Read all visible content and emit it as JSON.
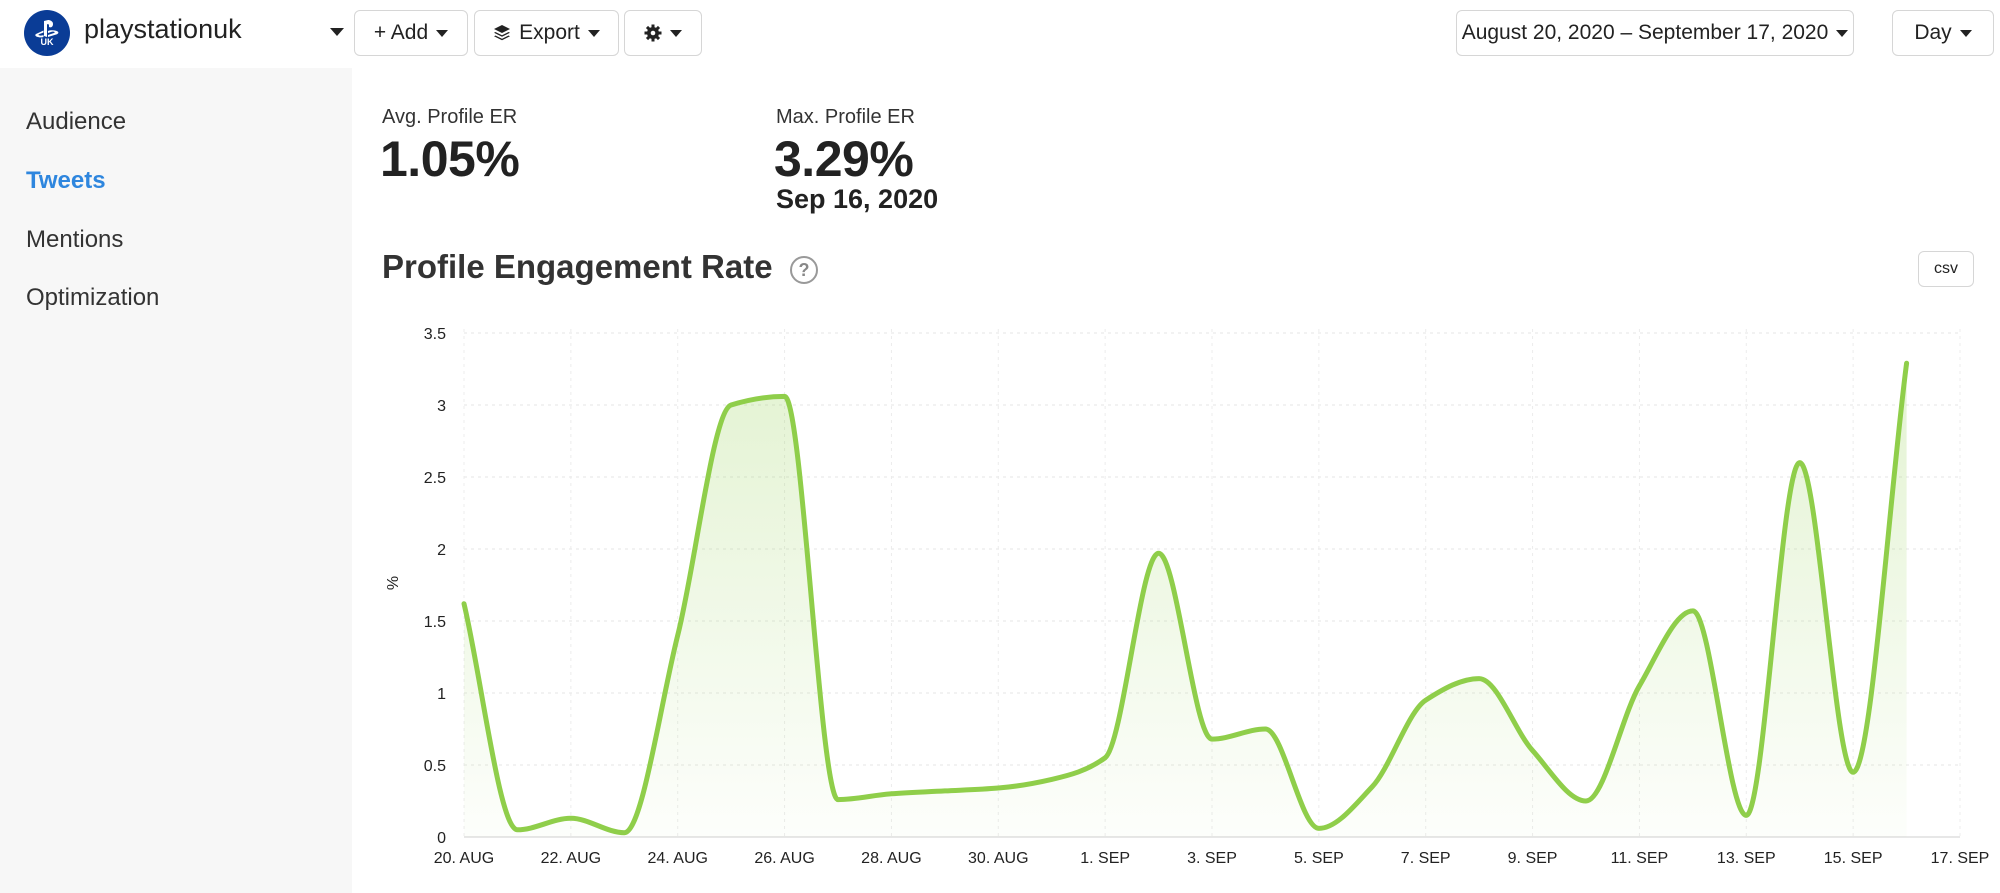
{
  "header": {
    "account_name": "playstationuk",
    "logo_badge": "UK",
    "add_label": "+ Add",
    "export_label": "Export",
    "date_range": "August 20, 2020 – September 17, 2020",
    "period": "Day"
  },
  "sidebar": {
    "items": [
      {
        "label": "Audience",
        "active": false
      },
      {
        "label": "Tweets",
        "active": true
      },
      {
        "label": "Mentions",
        "active": false
      },
      {
        "label": "Optimization",
        "active": false
      }
    ]
  },
  "stats": {
    "avg_label": "Avg. Profile ER",
    "avg_value": "1.05%",
    "max_label": "Max. Profile ER",
    "max_value": "3.29%",
    "max_date": "Sep 16, 2020"
  },
  "chart_title": "Profile Engagement Rate",
  "csv_label": "csv",
  "colors": {
    "accent": "#2e86de",
    "line": "#8fce4a",
    "logo": "#0a3c96"
  },
  "chart_data": {
    "type": "area",
    "ylabel": "%",
    "ylim": [
      0,
      3.5
    ],
    "yticks": [
      "0",
      "0.5",
      "1",
      "1.5",
      "2",
      "2.5",
      "3",
      "3.5"
    ],
    "xticks": [
      "20. AUG",
      "22. AUG",
      "24. AUG",
      "26. AUG",
      "28. AUG",
      "30. AUG",
      "1. SEP",
      "3. SEP",
      "5. SEP",
      "7. SEP",
      "9. SEP",
      "11. SEP",
      "13. SEP",
      "15. SEP",
      "17. SEP"
    ],
    "grid": true,
    "x": [
      "2020-08-20",
      "2020-08-21",
      "2020-08-22",
      "2020-08-23",
      "2020-08-24",
      "2020-08-25",
      "2020-08-26",
      "2020-08-27",
      "2020-08-28",
      "2020-08-29",
      "2020-08-30",
      "2020-08-31",
      "2020-09-01",
      "2020-09-02",
      "2020-09-03",
      "2020-09-04",
      "2020-09-05",
      "2020-09-06",
      "2020-09-07",
      "2020-09-08",
      "2020-09-09",
      "2020-09-10",
      "2020-09-11",
      "2020-09-12",
      "2020-09-13",
      "2020-09-14",
      "2020-09-15",
      "2020-09-16"
    ],
    "values": [
      1.62,
      0.05,
      0.13,
      0.03,
      1.4,
      3.0,
      3.06,
      0.26,
      0.3,
      0.32,
      0.34,
      0.4,
      0.55,
      1.97,
      0.68,
      0.75,
      0.06,
      0.35,
      0.95,
      1.1,
      0.6,
      0.25,
      1.05,
      1.57,
      0.15,
      2.6,
      0.45,
      3.29
    ]
  }
}
